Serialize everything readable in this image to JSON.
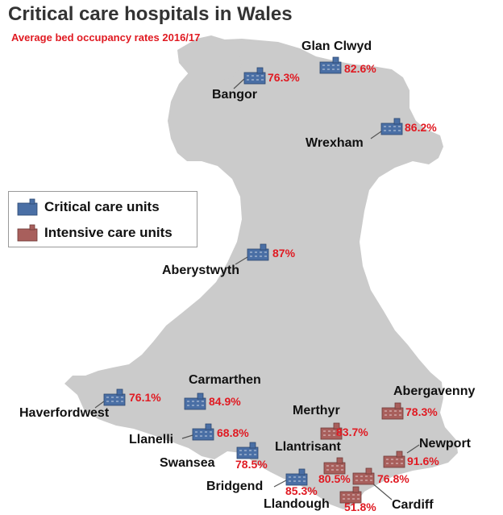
{
  "title": "Critical care hospitals in Wales",
  "subtitle": "Average bed occupancy rates 2016/17",
  "legend": {
    "critical": {
      "label": "Critical care units",
      "color": "#4a6fa5"
    },
    "intensive": {
      "label": "Intensive care units",
      "color": "#a85f5c"
    }
  },
  "colors": {
    "land": "#cbcbcb",
    "value_text": "#e01a22",
    "name_text": "#111111"
  },
  "hospitals": [
    {
      "id": "glan-clwyd",
      "name": "Glan Clwyd",
      "value": "82.6%",
      "type": "critical"
    },
    {
      "id": "bangor",
      "name": "Bangor",
      "value": "76.3%",
      "type": "critical"
    },
    {
      "id": "wrexham",
      "name": "Wrexham",
      "value": "86.2%",
      "type": "critical"
    },
    {
      "id": "aberystwyth",
      "name": "Aberystwyth",
      "value": "87%",
      "type": "critical"
    },
    {
      "id": "haverfordwest",
      "name": "Haverfordwest",
      "value": "76.1%",
      "type": "critical"
    },
    {
      "id": "carmarthen",
      "name": "Carmarthen",
      "value": "84.9%",
      "type": "critical"
    },
    {
      "id": "abergavenny",
      "name": "Abergavenny",
      "value": "78.3%",
      "type": "intensive"
    },
    {
      "id": "merthyr",
      "name": "Merthyr",
      "value": "83.7%",
      "type": "intensive"
    },
    {
      "id": "llanelli",
      "name": "Llanelli",
      "value": "68.8%",
      "type": "critical"
    },
    {
      "id": "newport",
      "name": "Newport",
      "value": "91.6%",
      "type": "intensive"
    },
    {
      "id": "swansea",
      "name": "Swansea",
      "value": "78.5%",
      "type": "critical"
    },
    {
      "id": "llantrisant",
      "name": "Llantrisant",
      "value": "80.5%",
      "type": "intensive"
    },
    {
      "id": "bridgend",
      "name": "Bridgend",
      "value": "85.3%",
      "type": "critical"
    },
    {
      "id": "cardiff",
      "name": "Cardiff",
      "value": "76.8%",
      "type": "intensive"
    },
    {
      "id": "llandough",
      "name": "Llandough",
      "value": "51.8%",
      "type": "intensive"
    }
  ]
}
